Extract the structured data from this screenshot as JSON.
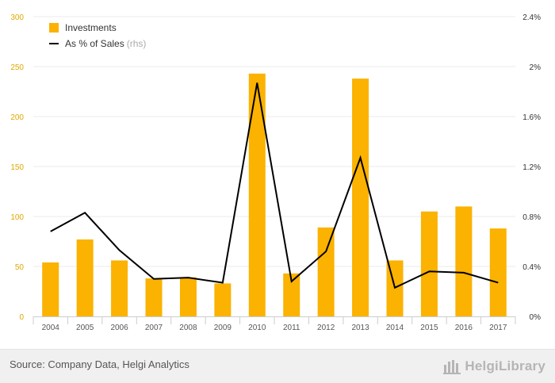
{
  "colors": {
    "bar": "#fbb200",
    "line": "#000000",
    "left_axis_labels": "#e0a800",
    "right_axis_labels": "#333333",
    "grid": "#ebebeb"
  },
  "legend": {
    "bar_label": "Investments",
    "line_label": "As % of Sales",
    "line_suffix": "(rhs)"
  },
  "footer": {
    "source": "Source: Company Data, Helgi Analytics",
    "logo_text": "HelgiLibrary",
    "logo_icon": "helgi-building-icon"
  },
  "chart_data": {
    "type": "bar",
    "categories": [
      "2004",
      "2005",
      "2006",
      "2007",
      "2008",
      "2009",
      "2010",
      "2011",
      "2012",
      "2013",
      "2014",
      "2015",
      "2016",
      "2017"
    ],
    "series": [
      {
        "name": "Investments",
        "type": "bar",
        "axis": "left",
        "values": [
          54,
          77,
          56,
          38,
          39,
          33,
          243,
          43,
          89,
          238,
          56,
          105,
          110,
          88
        ]
      },
      {
        "name": "As % of Sales",
        "type": "line",
        "axis": "right",
        "values": [
          0.68,
          0.83,
          0.53,
          0.3,
          0.31,
          0.27,
          1.87,
          0.28,
          0.52,
          1.27,
          0.23,
          0.36,
          0.35,
          0.27
        ]
      }
    ],
    "ylim": [
      0,
      300
    ],
    "yticks": [
      "0",
      "50",
      "100",
      "150",
      "200",
      "250",
      "300"
    ],
    "y2lim": [
      0,
      2.4
    ],
    "y2ticks": [
      "0%",
      "0.4%",
      "0.8%",
      "1.2%",
      "1.6%",
      "2%",
      "2.4%"
    ],
    "grid": true,
    "legend_position": "top-left"
  }
}
